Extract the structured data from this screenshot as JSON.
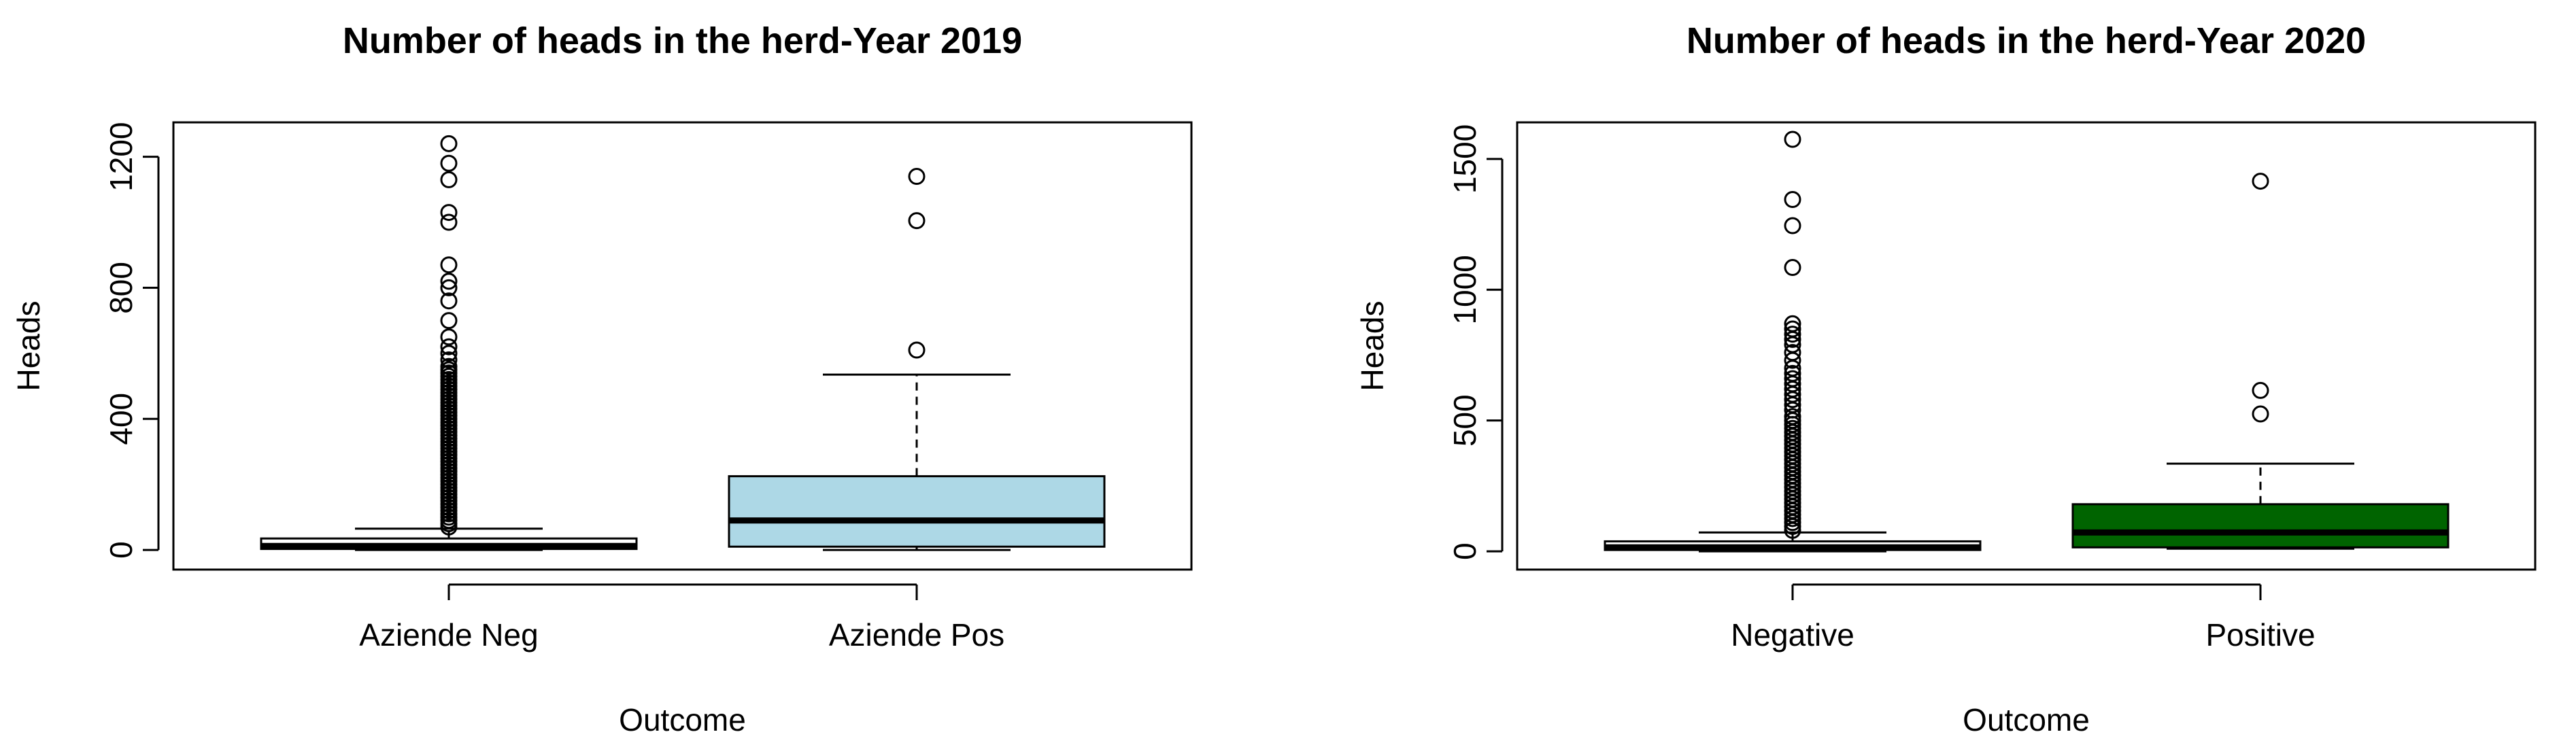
{
  "chart_data": [
    {
      "type": "boxplot",
      "title": "Number of heads in the herd-Year 2019",
      "xlabel": "Outcome",
      "ylabel": "Heads",
      "ylim": [
        -60,
        1305
      ],
      "yticks": [
        0,
        400,
        800,
        1200
      ],
      "yticklabels": [
        "0",
        "400",
        "800",
        "1200"
      ],
      "categories": [
        "Aziende Neg",
        "Aziende Pos"
      ],
      "boxes": [
        {
          "name": "Aziende Neg",
          "color": "#ffffff",
          "whisker_low": 0,
          "q1": 3,
          "median": 12,
          "q3": 35,
          "whisker_high": 65,
          "outliers": [
            70,
            80,
            90,
            100,
            110,
            120,
            130,
            140,
            150,
            160,
            170,
            180,
            190,
            200,
            210,
            220,
            230,
            240,
            250,
            260,
            270,
            280,
            290,
            300,
            310,
            320,
            330,
            340,
            350,
            360,
            370,
            380,
            390,
            400,
            410,
            420,
            430,
            440,
            450,
            460,
            470,
            480,
            490,
            500,
            510,
            520,
            530,
            540,
            550,
            560,
            580,
            600,
            620,
            650,
            700,
            760,
            800,
            820,
            870,
            1000,
            1030,
            1130,
            1180,
            1240
          ]
        },
        {
          "name": "Aziende Pos",
          "color": "#add8e6",
          "whisker_low": 0,
          "q1": 10,
          "median": 90,
          "q3": 225,
          "whisker_high": 535,
          "outliers": [
            610,
            1005,
            1140
          ]
        }
      ]
    },
    {
      "type": "boxplot",
      "title": "Number of heads in the herd-Year 2020",
      "xlabel": "Outcome",
      "ylabel": "Heads",
      "ylim": [
        -70,
        1640
      ],
      "yticks": [
        0,
        500,
        1000,
        1500
      ],
      "yticklabels": [
        "0",
        "500",
        "1000",
        "1500"
      ],
      "categories": [
        "Negative",
        "Positive"
      ],
      "boxes": [
        {
          "name": "Negative",
          "color": "#ffffff",
          "whisker_low": 0,
          "q1": 5,
          "median": 15,
          "q3": 38,
          "whisker_high": 72,
          "outliers": [
            80,
            95,
            110,
            125,
            140,
            155,
            170,
            185,
            200,
            215,
            230,
            245,
            260,
            275,
            290,
            305,
            320,
            335,
            350,
            365,
            380,
            395,
            410,
            425,
            440,
            455,
            470,
            485,
            500,
            515,
            540,
            560,
            580,
            600,
            620,
            640,
            660,
            680,
            700,
            730,
            760,
            790,
            810,
            830,
            850,
            870,
            1085,
            1245,
            1345,
            1575
          ]
        },
        {
          "name": "Positive",
          "color": "#006400",
          "whisker_low": 10,
          "q1": 15,
          "median": 72,
          "q3": 180,
          "whisker_high": 335,
          "outliers": [
            525,
            615,
            1415
          ]
        }
      ]
    }
  ]
}
